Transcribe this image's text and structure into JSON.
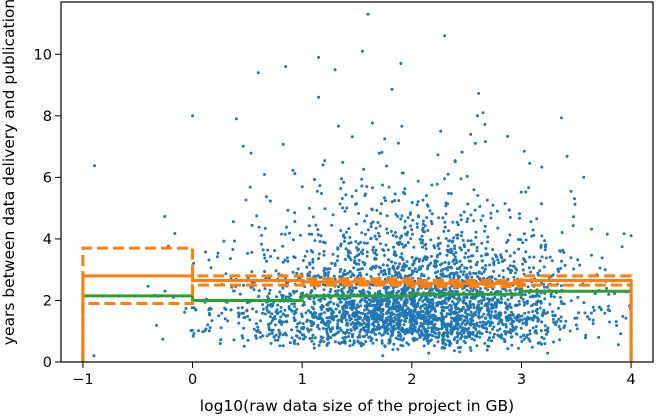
{
  "chart_data": {
    "type": "scatter",
    "xlabel": "log10(raw data size of the project in GB)",
    "ylabel": "years between data delivery and publication",
    "xlim": [
      -1.2,
      4.2
    ],
    "ylim": [
      0,
      11.7
    ],
    "xticks": [
      -1,
      0,
      1,
      2,
      3,
      4
    ],
    "yticks": [
      0,
      2,
      4,
      6,
      8,
      10
    ],
    "grid": false,
    "legend": "none",
    "scatter": {
      "color": "#1f77b4",
      "n_points": 3200,
      "center_x": 2.0,
      "spread_x": 0.75,
      "median_y": 1.9,
      "highlighted_points": [
        [
          1.6,
          11.3
        ],
        [
          2.3,
          10.6
        ],
        [
          0.0,
          8.0
        ],
        [
          1.55,
          10.1
        ],
        [
          1.9,
          9.7
        ],
        [
          2.6,
          8.0
        ],
        [
          2.65,
          8.1
        ],
        [
          0.4,
          7.9
        ],
        [
          4.0,
          4.1
        ],
        [
          -0.9,
          0.2
        ],
        [
          0.6,
          9.4
        ],
        [
          0.85,
          9.6
        ],
        [
          1.15,
          9.9
        ],
        [
          1.3,
          9.5
        ]
      ]
    },
    "step_series": [
      {
        "color": "#2ca02c",
        "style": "solid",
        "edges": [
          -1,
          0,
          1,
          2,
          3,
          4
        ],
        "values": [
          2.15,
          2.0,
          2.15,
          2.2,
          2.3
        ]
      },
      {
        "color": "#ff7f0e",
        "style": "solid",
        "edges": [
          -1,
          0,
          1,
          2,
          3,
          4
        ],
        "values": [
          2.8,
          2.65,
          2.6,
          2.55,
          2.65
        ]
      },
      {
        "color": "#ff7f0e",
        "style": "dashed",
        "edges": [
          -1,
          0,
          1,
          2,
          3,
          4
        ],
        "values": [
          3.7,
          2.8,
          2.7,
          2.65,
          2.8
        ]
      },
      {
        "color": "#ff7f0e",
        "style": "dashed",
        "edges": [
          -1,
          0,
          1,
          2,
          3,
          4
        ],
        "values": [
          1.9,
          2.5,
          2.5,
          2.45,
          2.5
        ]
      }
    ]
  }
}
